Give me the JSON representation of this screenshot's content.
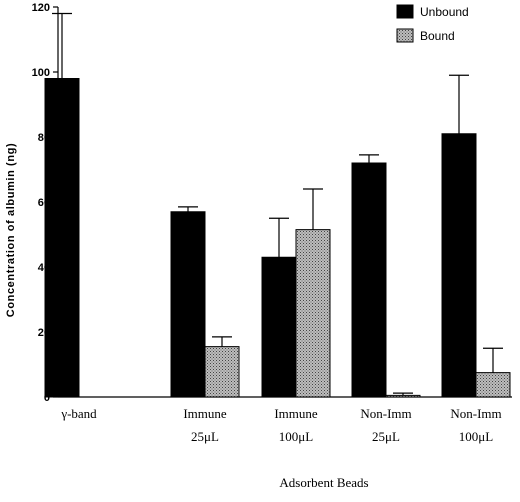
{
  "chart_data": {
    "type": "bar",
    "ylabel": "Concentration  of  albumin  (ng)",
    "xlabel": "Adsorbent Beads",
    "ylim": [
      0,
      120
    ],
    "yticks": [
      0,
      20,
      40,
      60,
      80,
      100,
      120
    ],
    "grid": false,
    "legend_position": "top-right",
    "categories": [
      [
        "γ-band"
      ],
      [
        "Immune",
        "25μL"
      ],
      [
        "Immune",
        "100μL"
      ],
      [
        "Non-Imm",
        "25μL"
      ],
      [
        "Non-Imm",
        "100μL"
      ]
    ],
    "series": [
      {
        "name": "Unbound",
        "fill": "solid-black",
        "color": "#000000",
        "values": [
          98,
          57,
          43,
          72,
          81
        ],
        "error_upper": [
          118,
          58.5,
          55,
          74.5,
          99
        ]
      },
      {
        "name": "Bound",
        "fill": "stippled-gray",
        "color": "#aaaaaa",
        "values": [
          null,
          15.5,
          51.5,
          0.5,
          7.5
        ],
        "error_upper": [
          null,
          18.5,
          64,
          1.2,
          15
        ]
      }
    ]
  }
}
